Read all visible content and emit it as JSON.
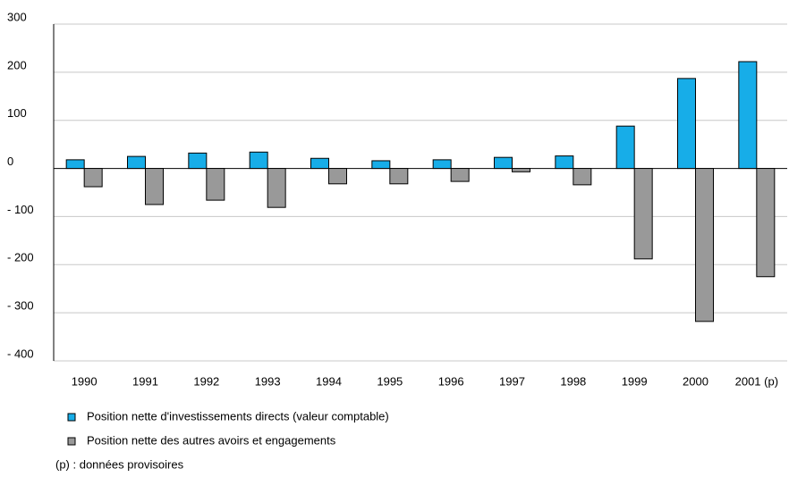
{
  "chart_data": {
    "type": "bar",
    "categories": [
      "1990",
      "1991",
      "1992",
      "1993",
      "1994",
      "1995",
      "1996",
      "1997",
      "1998",
      "1999",
      "2000",
      "2001 (p)"
    ],
    "series": [
      {
        "name": "Position nette d'investissements directs (valeur comptable)",
        "color": "#17ade8",
        "values": [
          18,
          25,
          32,
          34,
          21,
          16,
          18,
          23,
          26,
          88,
          187,
          222
        ]
      },
      {
        "name": "Position nette des autres avoirs et engagements",
        "color": "#999999",
        "values": [
          -38,
          -75,
          -66,
          -81,
          -32,
          -32,
          -27,
          -7,
          -34,
          -188,
          -318,
          -225
        ]
      }
    ],
    "ylim": [
      -400,
      300
    ],
    "yticks": [
      {
        "value": -400,
        "label": "- 400"
      },
      {
        "value": -300,
        "label": "- 300"
      },
      {
        "value": -200,
        "label": "- 200"
      },
      {
        "value": -100,
        "label": "- 100"
      },
      0,
      100,
      200,
      300
    ],
    "grid": true,
    "note": "(p) : données provisoires"
  }
}
